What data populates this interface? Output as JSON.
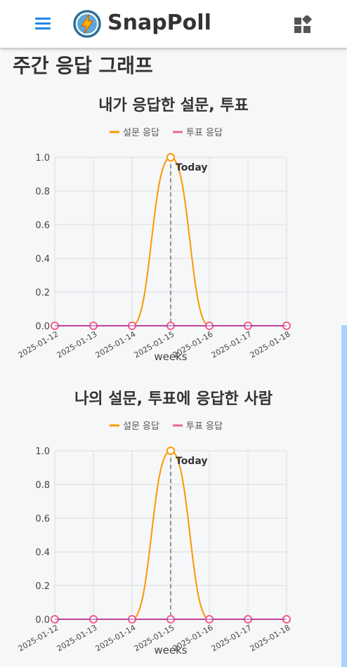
{
  "app": {
    "name": "SnapPoll"
  },
  "page": {
    "title": "주간 응답 그래프"
  },
  "icons": {
    "menu": "hamburger-menu-icon",
    "logo": "lightning-logo-icon",
    "widgets": "dashboard-widgets-icon"
  },
  "colors": {
    "primary": "#1e88e5",
    "survey": "#ff9800",
    "vote": "#f06292"
  },
  "chart_data": [
    {
      "type": "line",
      "title": "내가 응답한 설문, 투표",
      "x": [
        "2025-01-12",
        "2025-01-13",
        "2025-01-14",
        "2025-01-15",
        "2025-01-16",
        "2025-01-17",
        "2025-01-18"
      ],
      "series": [
        {
          "name": "설문 응답",
          "color": "#ff9800",
          "values": [
            0,
            0,
            0,
            1,
            0,
            0,
            0
          ]
        },
        {
          "name": "투표 응답",
          "color": "#f06292",
          "values": [
            0,
            0,
            0,
            0,
            0,
            0,
            0
          ]
        }
      ],
      "xlabel": "weeks",
      "ylim": [
        0,
        1
      ],
      "yticks": [
        "0.0",
        "0.2",
        "0.4",
        "0.6",
        "0.8",
        "1.0"
      ],
      "annotation": {
        "x": "2025-01-15",
        "label": "Today"
      },
      "legend": "top",
      "grid": true
    },
    {
      "type": "line",
      "title": "나의 설문, 투표에 응답한 사람",
      "x": [
        "2025-01-12",
        "2025-01-13",
        "2025-01-14",
        "2025-01-15",
        "2025-01-16",
        "2025-01-17",
        "2025-01-18"
      ],
      "series": [
        {
          "name": "설문 응답",
          "color": "#ff9800",
          "values": [
            0,
            0,
            0,
            1,
            0,
            0,
            0
          ]
        },
        {
          "name": "투표 응답",
          "color": "#f06292",
          "values": [
            0,
            0,
            0,
            0,
            0,
            0,
            0
          ]
        }
      ],
      "xlabel": "weeks",
      "ylim": [
        0,
        1
      ],
      "yticks": [
        "0.0",
        "0.2",
        "0.4",
        "0.6",
        "0.8",
        "1.0"
      ],
      "annotation": {
        "x": "2025-01-15",
        "label": "Today"
      },
      "legend": "top",
      "grid": true
    }
  ]
}
